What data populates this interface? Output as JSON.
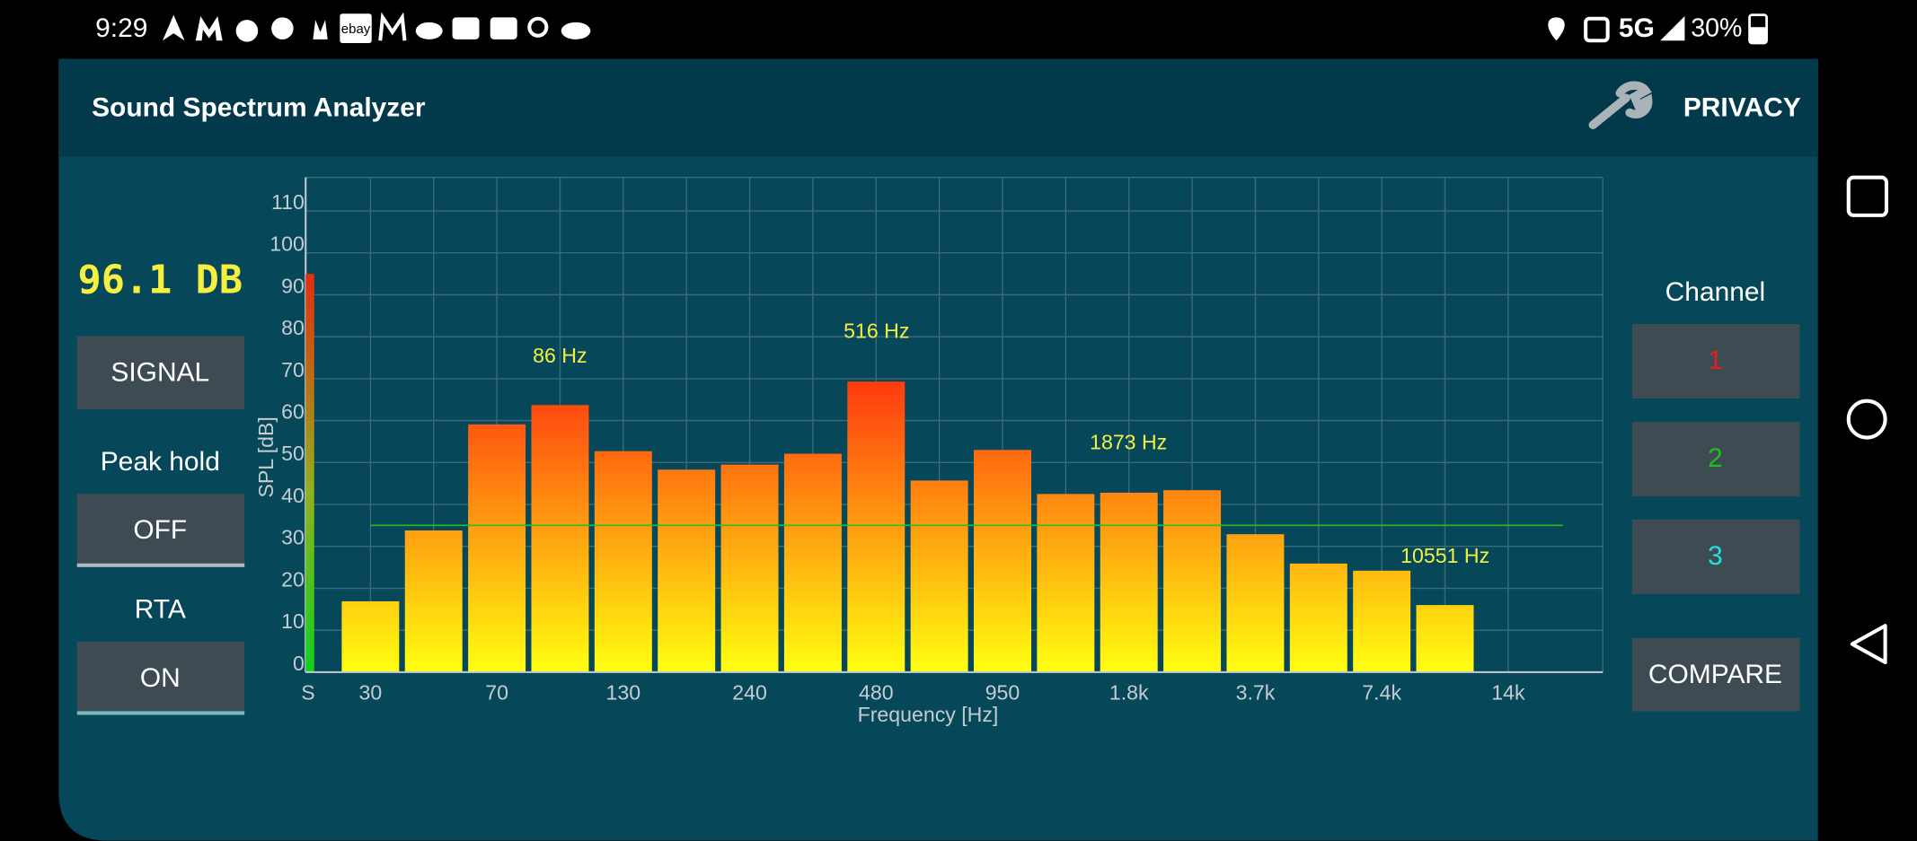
{
  "status_bar": {
    "time": "9:29",
    "ebay": "ebay",
    "network": "5G",
    "battery": "30%"
  },
  "app_bar": {
    "title": "Sound Spectrum Analyzer",
    "privacy": "PRIVACY"
  },
  "left_panel": {
    "level": "96.1 DB",
    "signal_button": "SIGNAL",
    "peak_hold_label": "Peak hold",
    "peak_hold_button": "OFF",
    "rta_label": "RTA",
    "rta_button": "ON"
  },
  "right_panel": {
    "channel_label": "Channel",
    "channels": [
      "1",
      "2",
      "3"
    ],
    "channel_colors": [
      "#e02020",
      "#20c020",
      "#20e0e0"
    ],
    "compare_button": "COMPARE"
  },
  "chart_data": {
    "type": "bar",
    "xlabel": "Frequency [Hz]",
    "ylabel": "SPL [dB]",
    "categories": [
      "30",
      null,
      "70",
      null,
      "130",
      null,
      "240",
      null,
      "480",
      null,
      "950",
      null,
      "1.8k",
      null,
      "3.7k",
      null,
      "7.4k",
      null,
      "14k"
    ],
    "values": [
      16.9,
      33.8,
      59.1,
      63.7,
      52.7,
      48.3,
      49.5,
      52.1,
      69.3,
      45.7,
      53.0,
      42.5,
      42.8,
      43.4,
      32.9,
      25.9,
      24.2,
      16.0,
      null
    ],
    "colors": [
      "#ffff10",
      "#ff3a10"
    ],
    "signal": {
      "label": "S",
      "value": 95,
      "colors": [
        "#10d020",
        "#e03010"
      ]
    },
    "threshold": 35,
    "threshold_color": "#20c020",
    "peak_labels": [
      "86 Hz",
      "516 Hz",
      "1873 Hz",
      "10551 Hz"
    ],
    "ylim": [
      0,
      118
    ],
    "yticks": [
      0,
      10,
      20,
      30,
      40,
      50,
      60,
      70,
      80,
      90,
      100,
      110
    ],
    "grid": true
  }
}
